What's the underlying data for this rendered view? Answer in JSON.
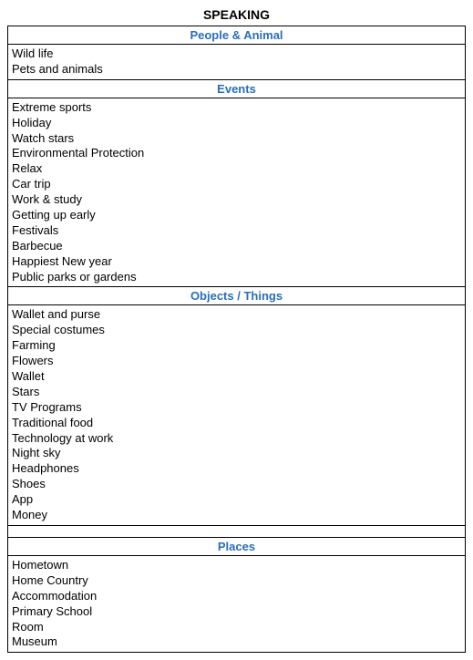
{
  "page_title": "SPEAKING",
  "sections": [
    {
      "heading": "People & Animal",
      "items": [
        "Wild life",
        "Pets and animals"
      ]
    },
    {
      "heading": "Events",
      "items": [
        "Extreme sports",
        "Holiday",
        "Watch stars",
        "Environmental Protection",
        "Relax",
        "Car trip",
        "Work & study",
        "Getting up early",
        "Festivals",
        "Barbecue",
        "Happiest New year",
        "Public parks or gardens"
      ]
    },
    {
      "heading": "Objects / Things",
      "items": [
        "Wallet and purse",
        "Special costumes",
        "Farming",
        "Flowers",
        "Wallet",
        "Stars",
        "TV Programs",
        "Traditional food",
        "Technology at work",
        "Night sky",
        "Headphones",
        "Shoes",
        "App",
        "Money"
      ]
    },
    {
      "heading": "Places",
      "items": [
        "Hometown",
        "Home Country",
        "Accommodation",
        "Primary School",
        "Room",
        "Museum"
      ]
    }
  ],
  "colors": {
    "heading_color": "#2a6ebb",
    "border_color": "#000000",
    "text_color": "#000000",
    "background": "#ffffff"
  },
  "fonts": {
    "title_size": 14,
    "body_size": 13
  }
}
